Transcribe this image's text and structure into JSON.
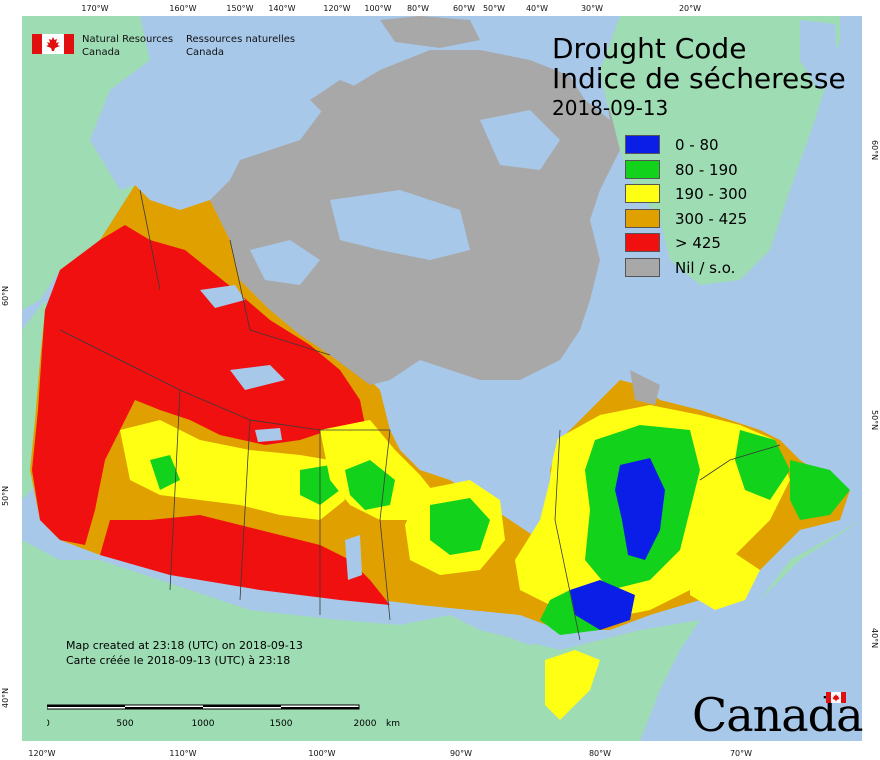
{
  "header": {
    "agency_en_line1": "Natural Resources",
    "agency_en_line2": "Canada",
    "agency_fr_line1": "Ressources naturelles",
    "agency_fr_line2": "Canada"
  },
  "map": {
    "title_en": "Drought Code",
    "title_fr": "Indice de sécheresse",
    "date": "2018-09-13",
    "projection": "lambert-conformal-conic",
    "colors": {
      "ocean": "#a8c8ea",
      "foreign_land": "#9edcb4",
      "no_data": "#a8a8a8",
      "border": "#3a3a3a"
    }
  },
  "legend": {
    "items": [
      {
        "label": "0 - 80",
        "color": "#0a1ee8"
      },
      {
        "label": "80 - 190",
        "color": "#12d21c"
      },
      {
        "label": "190 - 300",
        "color": "#ffff14"
      },
      {
        "label": "300 - 425",
        "color": "#e0a000"
      },
      {
        "label": "> 425",
        "color": "#f01010"
      },
      {
        "label": "Nil / s.o.",
        "color": "#a8a8a8"
      }
    ]
  },
  "graticule": {
    "top_labels": [
      "170°W",
      "160°W",
      "150°W",
      "140°W",
      "120°W",
      "100°W",
      "80°W",
      "60°W",
      "50°W",
      "40°W",
      "30°W",
      "20°W"
    ],
    "bottom_labels": [
      "120°W",
      "110°W",
      "100°W",
      "90°W",
      "80°W",
      "70°W"
    ],
    "left_labels": [
      "60°N",
      "50°N",
      "40°N"
    ],
    "right_labels": [
      "60°N",
      "50°N",
      "40°N"
    ]
  },
  "scale_bar": {
    "labels": [
      "0",
      "500",
      "1000",
      "1500",
      "2000"
    ],
    "unit": "km"
  },
  "footer": {
    "credit_en": "Map created at 23:18 (UTC) on 2018-09-13",
    "credit_fr": "Carte créée le 2018-09-13 (UTC) à 23:18",
    "wordmark": "Canada"
  }
}
